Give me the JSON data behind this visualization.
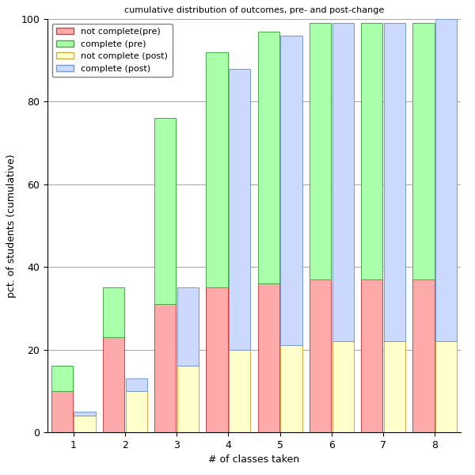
{
  "title": "cumulative distribution of outcomes, pre- and post-change",
  "xlabel": "# of classes taken",
  "ylabel": "pct. of students (cumulative)",
  "x_values": [
    1,
    2,
    3,
    4,
    5,
    6,
    7,
    8
  ],
  "pre_not_complete": [
    10,
    23,
    31,
    35,
    36,
    37,
    37,
    37
  ],
  "pre_complete": [
    16,
    35,
    76,
    92,
    97,
    99,
    99,
    99
  ],
  "post_not_complete": [
    4,
    10,
    16,
    20,
    21,
    22,
    22,
    22
  ],
  "post_complete": [
    5,
    13,
    35,
    88,
    96,
    99,
    99,
    100
  ],
  "color_pre_not_complete": "#ffaaaa",
  "color_pre_complete": "#aaffaa",
  "color_post_not_complete": "#ffffcc",
  "color_post_complete": "#ccd9ff",
  "edge_color_pre_nc": "#cc4444",
  "edge_color_pre_c": "#44aa44",
  "edge_color_post_nc": "#ccaa44",
  "edge_color_post_c": "#7799cc",
  "bar_width": 0.42,
  "bar_gap": 0.02,
  "ylim": [
    0,
    100
  ],
  "yticks": [
    0,
    20,
    40,
    60,
    80,
    100
  ],
  "title_fontsize": 8,
  "axis_fontsize": 9,
  "tick_fontsize": 9
}
